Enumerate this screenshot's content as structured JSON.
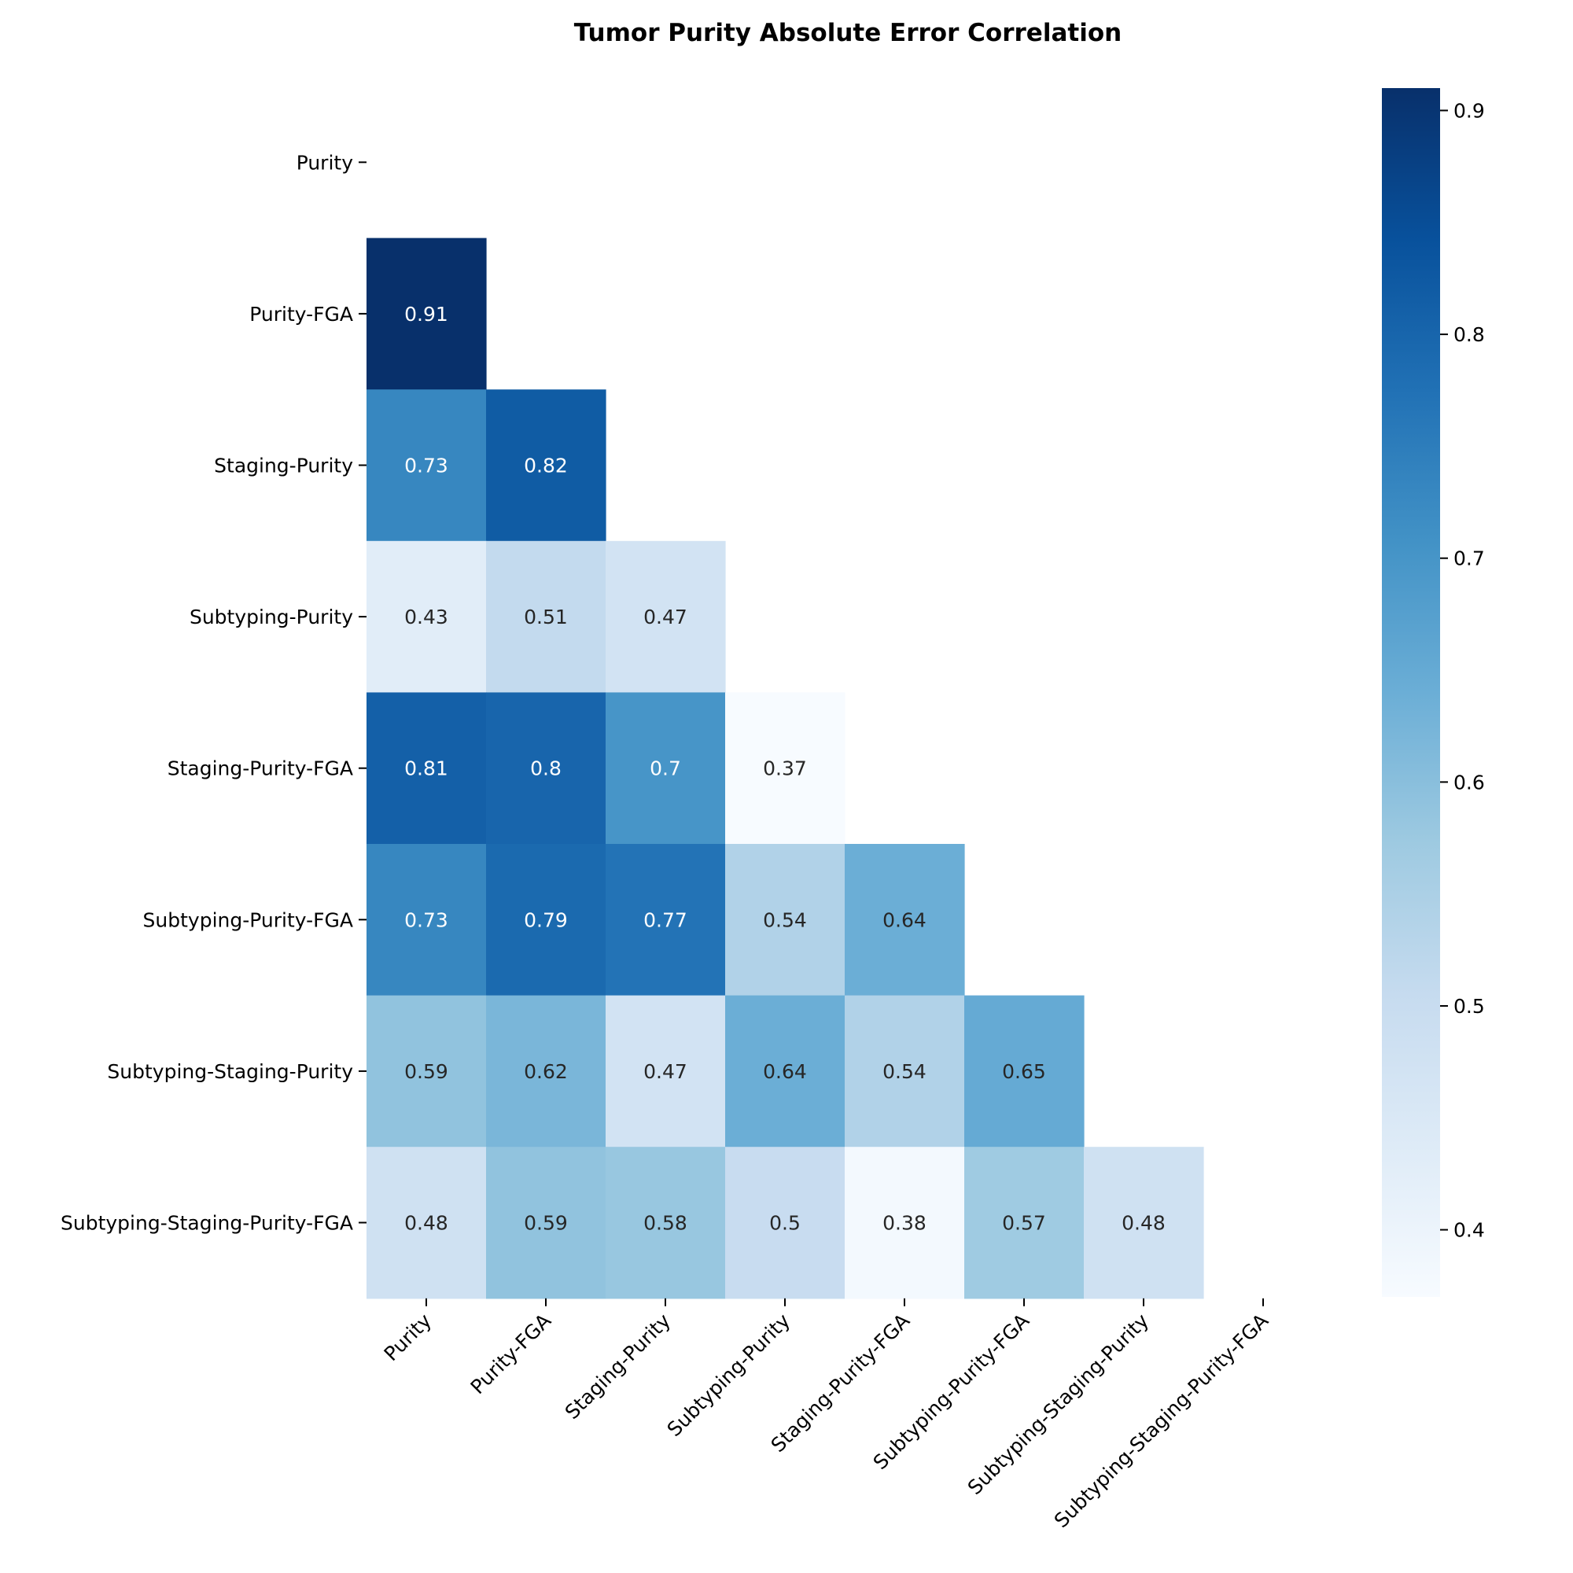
{
  "chart_data": {
    "type": "heatmap",
    "title": "Tumor Purity Absolute Error Correlation",
    "xlabel": "",
    "ylabel": "",
    "labels": [
      "Purity",
      "Purity-FGA",
      "Staging-Purity",
      "Subtyping-Purity",
      "Staging-Purity-FGA",
      "Subtyping-Purity-FGA",
      "Subtyping-Staging-Purity",
      "Subtyping-Staging-Purity-FGA"
    ],
    "mask": "upper-triangle-including-diagonal",
    "colormap": "Blues",
    "color_range": [
      0.37,
      0.91
    ],
    "colorbar": {
      "position": "right",
      "ticks": [
        "0.4",
        "0.5",
        "0.6",
        "0.7",
        "0.8",
        "0.9"
      ],
      "tick_values": [
        0.4,
        0.5,
        0.6,
        0.7,
        0.8,
        0.9
      ]
    },
    "cells": [
      {
        "row": 1,
        "col": 0,
        "value": 0.91,
        "label": "0.91"
      },
      {
        "row": 2,
        "col": 0,
        "value": 0.73,
        "label": "0.73"
      },
      {
        "row": 2,
        "col": 1,
        "value": 0.82,
        "label": "0.82"
      },
      {
        "row": 3,
        "col": 0,
        "value": 0.43,
        "label": "0.43"
      },
      {
        "row": 3,
        "col": 1,
        "value": 0.51,
        "label": "0.51"
      },
      {
        "row": 3,
        "col": 2,
        "value": 0.47,
        "label": "0.47"
      },
      {
        "row": 4,
        "col": 0,
        "value": 0.81,
        "label": "0.81"
      },
      {
        "row": 4,
        "col": 1,
        "value": 0.8,
        "label": "0.8"
      },
      {
        "row": 4,
        "col": 2,
        "value": 0.7,
        "label": "0.7"
      },
      {
        "row": 4,
        "col": 3,
        "value": 0.37,
        "label": "0.37"
      },
      {
        "row": 5,
        "col": 0,
        "value": 0.73,
        "label": "0.73"
      },
      {
        "row": 5,
        "col": 1,
        "value": 0.79,
        "label": "0.79"
      },
      {
        "row": 5,
        "col": 2,
        "value": 0.77,
        "label": "0.77"
      },
      {
        "row": 5,
        "col": 3,
        "value": 0.54,
        "label": "0.54"
      },
      {
        "row": 5,
        "col": 4,
        "value": 0.64,
        "label": "0.64"
      },
      {
        "row": 6,
        "col": 0,
        "value": 0.59,
        "label": "0.59"
      },
      {
        "row": 6,
        "col": 1,
        "value": 0.62,
        "label": "0.62"
      },
      {
        "row": 6,
        "col": 2,
        "value": 0.47,
        "label": "0.47"
      },
      {
        "row": 6,
        "col": 3,
        "value": 0.64,
        "label": "0.64"
      },
      {
        "row": 6,
        "col": 4,
        "value": 0.54,
        "label": "0.54"
      },
      {
        "row": 6,
        "col": 5,
        "value": 0.65,
        "label": "0.65"
      },
      {
        "row": 7,
        "col": 0,
        "value": 0.48,
        "label": "0.48"
      },
      {
        "row": 7,
        "col": 1,
        "value": 0.59,
        "label": "0.59"
      },
      {
        "row": 7,
        "col": 2,
        "value": 0.58,
        "label": "0.58"
      },
      {
        "row": 7,
        "col": 3,
        "value": 0.5,
        "label": "0.5"
      },
      {
        "row": 7,
        "col": 4,
        "value": 0.38,
        "label": "0.38"
      },
      {
        "row": 7,
        "col": 5,
        "value": 0.57,
        "label": "0.57"
      },
      {
        "row": 7,
        "col": 6,
        "value": 0.48,
        "label": "0.48"
      }
    ]
  }
}
